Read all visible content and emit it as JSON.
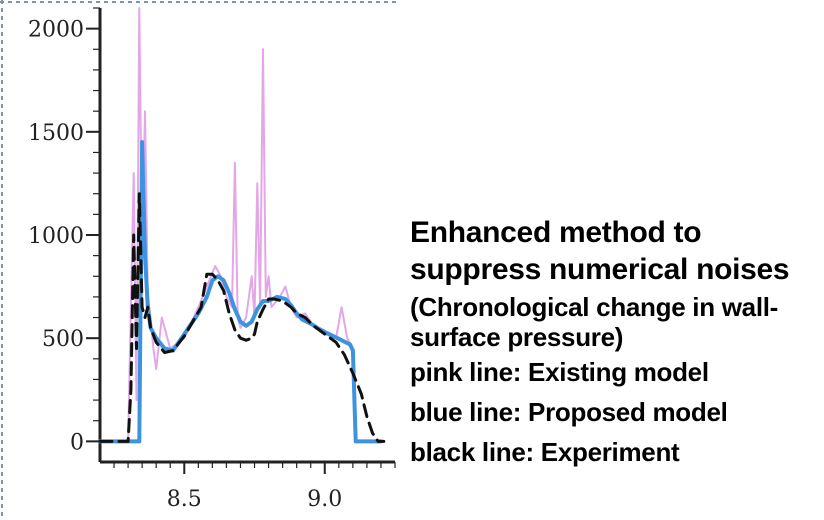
{
  "caption": {
    "title": "Enhanced method to suppress numerical noises",
    "subtitle": "(Chronological change in wall-surface pressure)",
    "legend": [
      "pink line: Existing model",
      "blue line: Proposed model",
      "black line: Experiment"
    ]
  },
  "colors": {
    "existing": "#e3a6e6",
    "proposed": "#3d93e0",
    "experiment": "#111111",
    "axis": "#222222",
    "frame": "#7c93b3"
  },
  "chart_data": {
    "type": "line",
    "title": "",
    "xlabel": "",
    "ylabel": "",
    "xlim": [
      8.2,
      9.25
    ],
    "ylim": [
      -100,
      2100
    ],
    "x_ticks": [
      8.5,
      9.0
    ],
    "y_ticks": [
      0,
      500,
      1000,
      1500,
      2000
    ],
    "x_tick_labels": [
      "8.5",
      "9.0"
    ],
    "y_tick_labels": [
      "0",
      "500",
      "1000",
      "1500",
      "2000"
    ],
    "grid": false,
    "legend": "none",
    "series": [
      {
        "name": "pink line: Existing model",
        "style": "solid",
        "x": [
          8.2,
          8.3,
          8.32,
          8.33,
          8.34,
          8.35,
          8.36,
          8.37,
          8.38,
          8.39,
          8.4,
          8.42,
          8.45,
          8.5,
          8.55,
          8.58,
          8.61,
          8.63,
          8.65,
          8.67,
          8.68,
          8.69,
          8.7,
          8.72,
          8.74,
          8.75,
          8.76,
          8.77,
          8.78,
          8.79,
          8.8,
          8.81,
          8.84,
          8.86,
          8.88,
          8.9,
          8.93,
          8.96,
          9.0,
          9.04,
          9.06,
          9.08,
          9.1,
          9.11,
          9.12,
          9.2
        ],
        "y": [
          0,
          0,
          1300,
          200,
          2100,
          900,
          1600,
          700,
          600,
          450,
          350,
          600,
          450,
          500,
          650,
          750,
          850,
          800,
          700,
          650,
          1350,
          600,
          550,
          600,
          800,
          600,
          1250,
          650,
          1900,
          700,
          800,
          650,
          700,
          750,
          650,
          600,
          620,
          560,
          520,
          500,
          650,
          500,
          450,
          0,
          0,
          0
        ]
      },
      {
        "name": "blue line: Proposed model",
        "style": "solid",
        "x": [
          8.2,
          8.34,
          8.35,
          8.36,
          8.37,
          8.38,
          8.4,
          8.43,
          8.46,
          8.5,
          8.55,
          8.58,
          8.6,
          8.62,
          8.64,
          8.66,
          8.68,
          8.7,
          8.72,
          8.74,
          8.76,
          8.78,
          8.8,
          8.83,
          8.86,
          8.88,
          8.9,
          8.92,
          8.95,
          8.98,
          9.0,
          9.03,
          9.06,
          9.09,
          9.1,
          9.11,
          9.12,
          9.2
        ],
        "y": [
          0,
          0,
          1450,
          900,
          650,
          550,
          500,
          450,
          440,
          520,
          620,
          700,
          780,
          800,
          780,
          720,
          640,
          580,
          560,
          580,
          640,
          680,
          680,
          700,
          690,
          660,
          620,
          590,
          570,
          545,
          530,
          510,
          490,
          470,
          440,
          0,
          0,
          0
        ]
      },
      {
        "name": "black line: Experiment",
        "style": "dashed",
        "x": [
          8.2,
          8.3,
          8.31,
          8.32,
          8.33,
          8.34,
          8.35,
          8.36,
          8.37,
          8.38,
          8.4,
          8.43,
          8.46,
          8.5,
          8.53,
          8.56,
          8.58,
          8.6,
          8.62,
          8.64,
          8.66,
          8.68,
          8.7,
          8.72,
          8.74,
          8.75,
          8.76,
          8.78,
          8.8,
          8.82,
          8.85,
          8.88,
          8.9,
          8.93,
          8.96,
          9.0,
          9.04,
          9.07,
          9.1,
          9.13,
          9.15,
          9.17,
          9.19,
          9.21
        ],
        "y": [
          0,
          0,
          250,
          1000,
          450,
          1200,
          650,
          600,
          650,
          550,
          480,
          430,
          440,
          510,
          580,
          650,
          810,
          810,
          780,
          730,
          620,
          540,
          500,
          490,
          500,
          520,
          580,
          640,
          690,
          690,
          680,
          650,
          620,
          600,
          560,
          520,
          480,
          420,
          330,
          230,
          120,
          40,
          0,
          0
        ]
      }
    ]
  }
}
